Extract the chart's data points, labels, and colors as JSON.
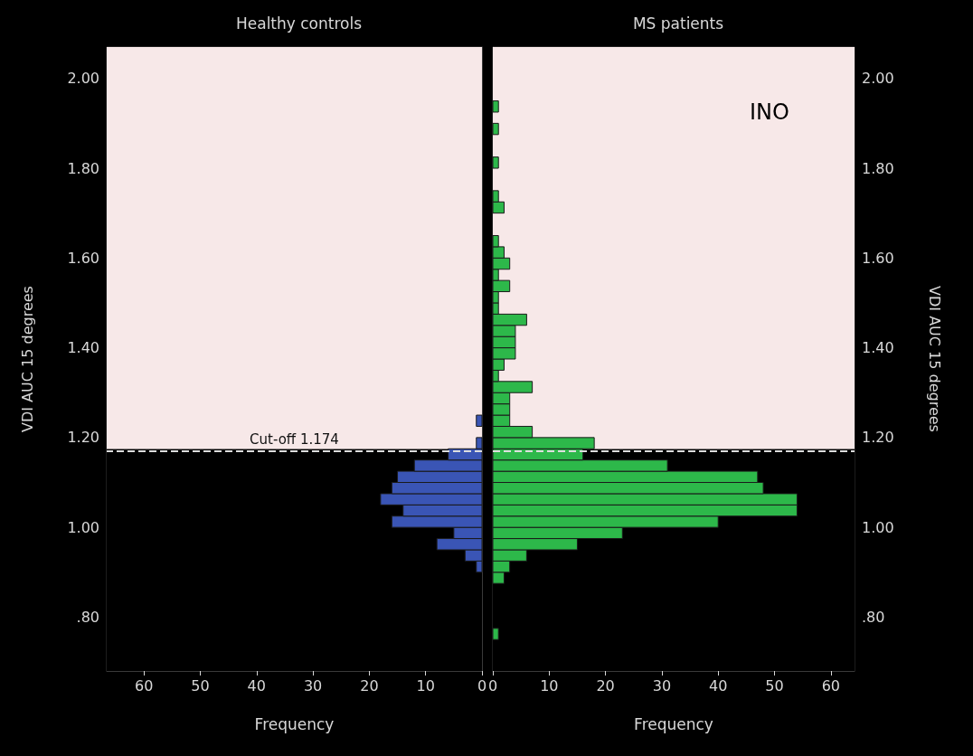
{
  "chart_data": [
    {
      "type": "histogram",
      "orientation": "horizontal",
      "title": "Healthy controls",
      "xlabel": "Frequency",
      "ylabel": "VDI AUC 15 degrees",
      "bins": [
        0.75,
        0.775,
        0.8,
        0.825,
        0.85,
        0.875,
        0.9,
        0.925,
        0.95,
        0.975,
        1.0,
        1.025,
        1.05,
        1.075,
        1.1,
        1.125,
        1.15,
        1.175,
        1.2,
        1.225,
        1.25,
        1.275,
        1.3,
        1.325,
        1.35,
        1.375,
        1.4,
        1.425,
        1.45,
        1.475,
        1.5,
        1.525,
        1.55,
        1.575,
        1.6,
        1.625,
        1.65,
        1.675,
        1.7,
        1.725,
        1.75,
        1.775,
        1.8,
        1.825,
        1.85,
        1.875,
        1.9,
        1.925,
        1.95
      ],
      "series": [
        {
          "color": "#3a55b5",
          "values": [
            0,
            0,
            0,
            0,
            0,
            0,
            1,
            3,
            8,
            5,
            16,
            14,
            18,
            16,
            15,
            12,
            6,
            1,
            0,
            1,
            0,
            0,
            0,
            0,
            0,
            0,
            0,
            0,
            0,
            0,
            0,
            0,
            0,
            0,
            0,
            0,
            0,
            0,
            0,
            0,
            0,
            0,
            0,
            0,
            0,
            0,
            0,
            0
          ]
        }
      ],
      "xlim": [
        66.6,
        0
      ],
      "xticks": [
        60,
        50,
        40,
        30,
        20,
        10,
        0
      ],
      "ylim": [
        0.68,
        2.07
      ],
      "yticks": [
        {
          "value": 0.8,
          "label": ".80"
        },
        {
          "value": 1.0,
          "label": "1.00"
        },
        {
          "value": 1.2,
          "label": "1.20"
        },
        {
          "value": 1.4,
          "label": "1.40"
        },
        {
          "value": 1.6,
          "label": "1.60"
        },
        {
          "value": 1.8,
          "label": "1.80"
        },
        {
          "value": 2.0,
          "label": "2.00"
        }
      ],
      "bands": [
        {
          "axis": "y",
          "from": 1.174,
          "to": 2.07,
          "color": "#f7e8e8"
        },
        {
          "axis": "y",
          "from": 0.68,
          "to": 1.174,
          "color": "#000000"
        }
      ],
      "ref_lines": [
        {
          "axis": "y",
          "value": 1.174,
          "label": "Cut-off 1.174",
          "color": "#dddddd",
          "line_style": "dashed"
        }
      ],
      "grid": false
    },
    {
      "type": "histogram",
      "orientation": "horizontal",
      "title": "MS patients",
      "xlabel": "Frequency",
      "ylabel": "VDI AUC 15 degrees",
      "bins": [
        0.75,
        0.775,
        0.8,
        0.825,
        0.85,
        0.875,
        0.9,
        0.925,
        0.95,
        0.975,
        1.0,
        1.025,
        1.05,
        1.075,
        1.1,
        1.125,
        1.15,
        1.175,
        1.2,
        1.225,
        1.25,
        1.275,
        1.3,
        1.325,
        1.35,
        1.375,
        1.4,
        1.425,
        1.45,
        1.475,
        1.5,
        1.525,
        1.55,
        1.575,
        1.6,
        1.625,
        1.65,
        1.675,
        1.7,
        1.725,
        1.75,
        1.775,
        1.8,
        1.825,
        1.85,
        1.875,
        1.9,
        1.925,
        1.95
      ],
      "series": [
        {
          "color": "#2db84a",
          "values": [
            1,
            0,
            0,
            0,
            0,
            2,
            3,
            6,
            15,
            23,
            40,
            54,
            54,
            48,
            47,
            31,
            16,
            18,
            7,
            3,
            3,
            3,
            7,
            1,
            2,
            4,
            4,
            4,
            6,
            1,
            1,
            3,
            1,
            3,
            2,
            1,
            0,
            0,
            2,
            1,
            0,
            0,
            1,
            0,
            0,
            1,
            0,
            1
          ]
        }
      ],
      "xlim": [
        0,
        64.2
      ],
      "xticks": [
        0,
        10,
        20,
        30,
        40,
        50,
        60
      ],
      "ylim": [
        0.68,
        2.07
      ],
      "yticks": [
        {
          "value": 0.8,
          "label": ".80"
        },
        {
          "value": 1.0,
          "label": "1.00"
        },
        {
          "value": 1.2,
          "label": "1.20"
        },
        {
          "value": 1.4,
          "label": "1.40"
        },
        {
          "value": 1.6,
          "label": "1.60"
        },
        {
          "value": 1.8,
          "label": "1.80"
        },
        {
          "value": 2.0,
          "label": "2.00"
        }
      ],
      "bands": [
        {
          "axis": "y",
          "from": 1.174,
          "to": 2.07,
          "color": "#f7e8e8"
        },
        {
          "axis": "y",
          "from": 0.68,
          "to": 1.174,
          "color": "#000000"
        }
      ],
      "ref_lines": [
        {
          "axis": "y",
          "value": 1.174,
          "color": "#dddddd",
          "line_style": "dashed"
        }
      ],
      "annotations": [
        "INO"
      ],
      "grid": false
    }
  ]
}
